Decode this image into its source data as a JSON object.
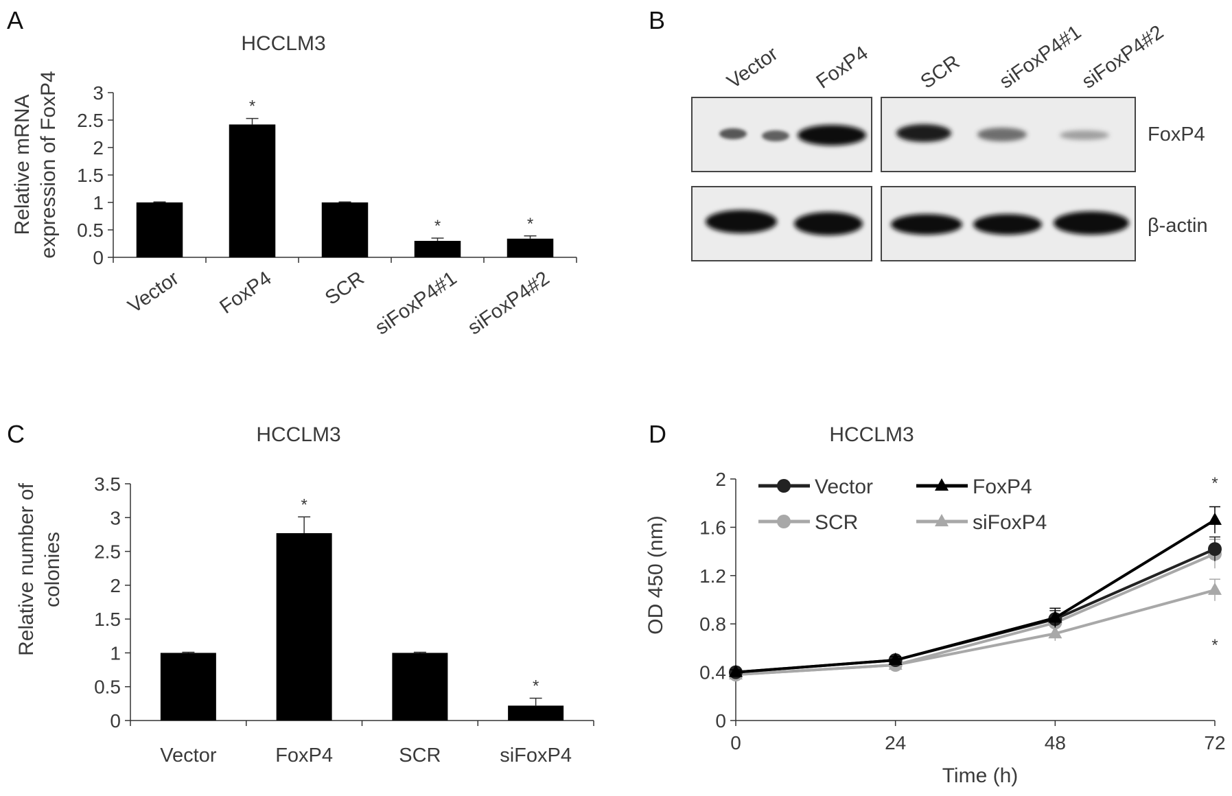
{
  "chart_data": [
    {
      "panel": "A",
      "type": "bar",
      "title": "HCCLM3",
      "ylabel_lines": [
        "Relative mRNA",
        "expression of FoxP4"
      ],
      "ylim": [
        0,
        3
      ],
      "yticks": [
        "0",
        "0.5",
        "1",
        "1.5",
        "2",
        "2.5",
        "3"
      ],
      "categories": [
        "Vector",
        "FoxP4",
        "SCR",
        "siFoxP4#1",
        "siFoxP4#2"
      ],
      "values": [
        1.0,
        2.42,
        1.0,
        0.3,
        0.34
      ],
      "errors": [
        0.01,
        0.11,
        0.01,
        0.05,
        0.05
      ],
      "significance": [
        "",
        "*",
        "",
        "*",
        "*"
      ],
      "color": "#000000"
    },
    {
      "panel": "B",
      "type": "blot",
      "lanes_left": [
        "Vector",
        "FoxP4"
      ],
      "lanes_right": [
        "SCR",
        "siFoxP4#1",
        "siFoxP4#2"
      ],
      "rows": [
        "FoxP4",
        "β-actin"
      ]
    },
    {
      "panel": "C",
      "type": "bar",
      "title": "HCCLM3",
      "ylabel_lines": [
        "Relative number of",
        "colonies"
      ],
      "ylim": [
        0,
        3.5
      ],
      "yticks": [
        "0",
        "0.5",
        "1",
        "1.5",
        "2",
        "2.5",
        "3",
        "3.5"
      ],
      "categories": [
        "Vector",
        "FoxP4",
        "SCR",
        "siFoxP4"
      ],
      "values": [
        1.0,
        2.77,
        1.0,
        0.22
      ],
      "errors": [
        0.01,
        0.24,
        0.01,
        0.11
      ],
      "significance": [
        "",
        "*",
        "",
        "*"
      ],
      "color": "#000000"
    },
    {
      "panel": "D",
      "type": "line",
      "title": "HCCLM3",
      "xlabel": "Time (h)",
      "ylabel": "OD 450 (nm)",
      "x": [
        0,
        24,
        48,
        72
      ],
      "xticks": [
        "0",
        "24",
        "48",
        "72"
      ],
      "ylim": [
        0,
        2
      ],
      "yticks": [
        "0",
        "0.4",
        "0.8",
        "1.2",
        "1.6",
        "2"
      ],
      "series": [
        {
          "name": "Vector",
          "values": [
            0.4,
            0.5,
            0.84,
            1.42
          ],
          "errors": [
            0.02,
            0.03,
            0.07,
            0.1
          ],
          "color": "#222222",
          "marker": "circle"
        },
        {
          "name": "FoxP4",
          "values": [
            0.4,
            0.5,
            0.85,
            1.66
          ],
          "errors": [
            0.02,
            0.03,
            0.08,
            0.11
          ],
          "color": "#000000",
          "marker": "triangle"
        },
        {
          "name": "SCR",
          "values": [
            0.38,
            0.46,
            0.81,
            1.38
          ],
          "errors": [
            0.02,
            0.03,
            0.06,
            0.12
          ],
          "color": "#a8a8a8",
          "marker": "circle"
        },
        {
          "name": "siFoxP4",
          "values": [
            0.38,
            0.46,
            0.72,
            1.08
          ],
          "errors": [
            0.02,
            0.03,
            0.06,
            0.09
          ],
          "color": "#a8a8a8",
          "marker": "triangle"
        }
      ],
      "significance_top": "*",
      "significance_bottom": "*",
      "legend_position": "top-left"
    }
  ]
}
